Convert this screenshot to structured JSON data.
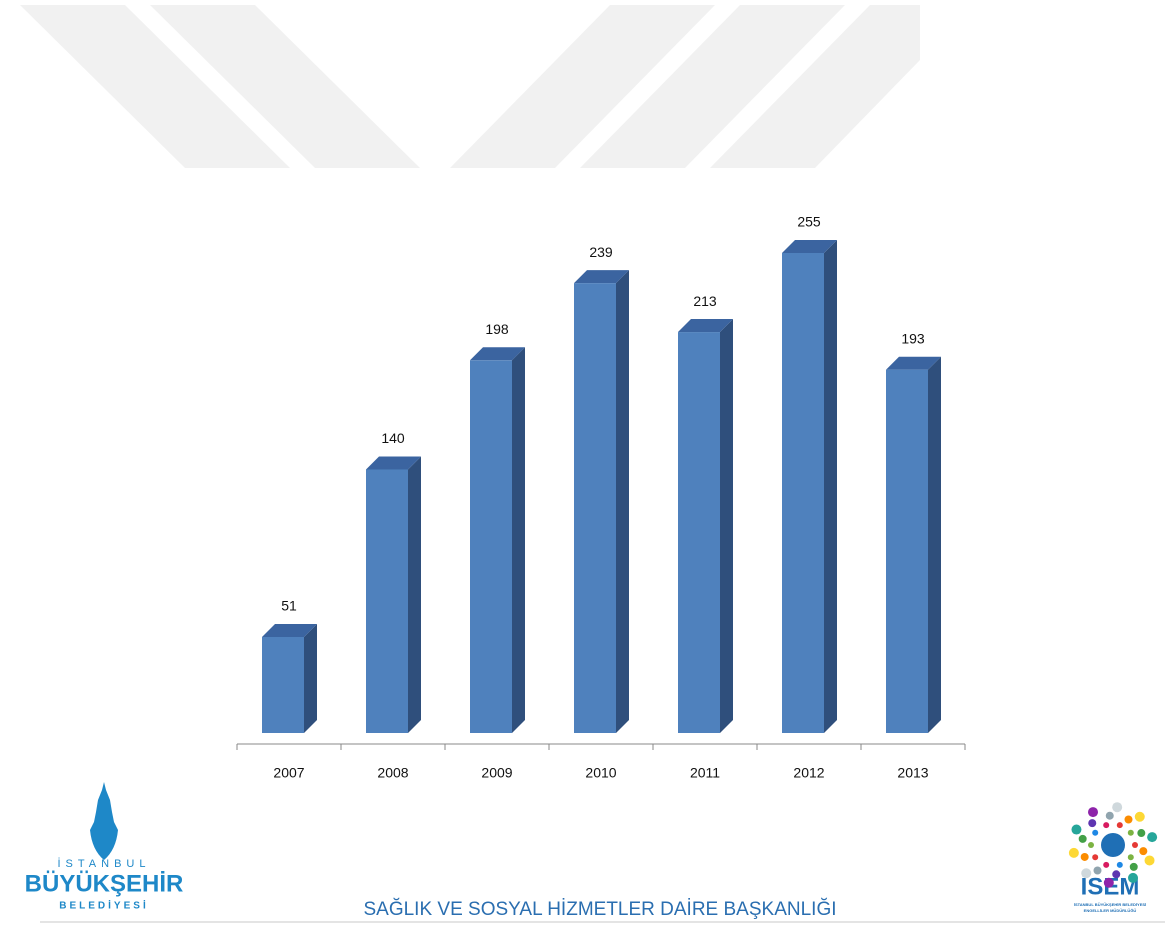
{
  "chart_data": {
    "type": "bar3d",
    "categories": [
      "2007",
      "2008",
      "2009",
      "2010",
      "2011",
      "2012",
      "2013"
    ],
    "values": [
      51,
      140,
      198,
      239,
      213,
      255,
      193
    ],
    "color": "#4f81bd"
  },
  "footer": {
    "text": "SAĞLIK VE SOSYAL HİZMETLER DAİRE BAŞKANLIĞI"
  },
  "logo_left": {
    "line1": "İSTANBUL",
    "line2": "BÜYÜKŞEHİR",
    "line3": "BELEDİYESİ"
  },
  "logo_right": {
    "name": "İSEM",
    "subtitle1": "İSTANBUL BÜYÜKŞEHİR BELEDİYESİ",
    "subtitle2": "ENGELLİLER MÜDÜRLÜĞÜ"
  }
}
